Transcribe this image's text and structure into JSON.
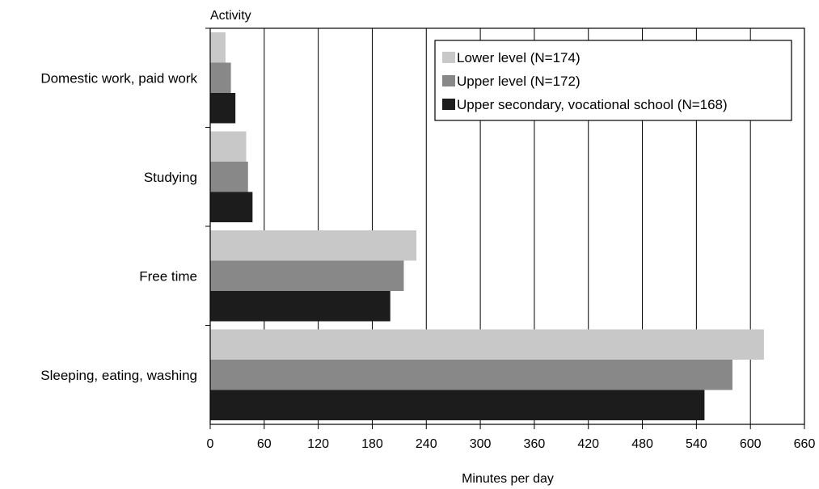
{
  "chart_data": {
    "type": "bar",
    "orientation": "horizontal",
    "title": "",
    "ylabel": "Activity",
    "xlabel": "Minutes per day",
    "xlim": [
      0,
      660
    ],
    "x_ticks": [
      "0",
      "60",
      "120",
      "180",
      "240",
      "300",
      "360",
      "420",
      "480",
      "540",
      "600",
      "660"
    ],
    "categories": [
      "Domestic work, paid work",
      "Studying",
      "Free time",
      "Sleeping, eating, washing"
    ],
    "series": [
      {
        "name": "Lower level (N=174)",
        "color": "#c8c8c8",
        "values": [
          17,
          40,
          229,
          615
        ]
      },
      {
        "name": "Upper level (N=172)",
        "color": "#888888",
        "values": [
          23,
          42,
          215,
          580
        ]
      },
      {
        "name": "Upper secondary, vocational school (N=168)",
        "color": "#1c1c1c",
        "values": [
          28,
          47,
          200,
          549
        ]
      }
    ],
    "grid": "vertical",
    "legend_position": "top-right"
  }
}
